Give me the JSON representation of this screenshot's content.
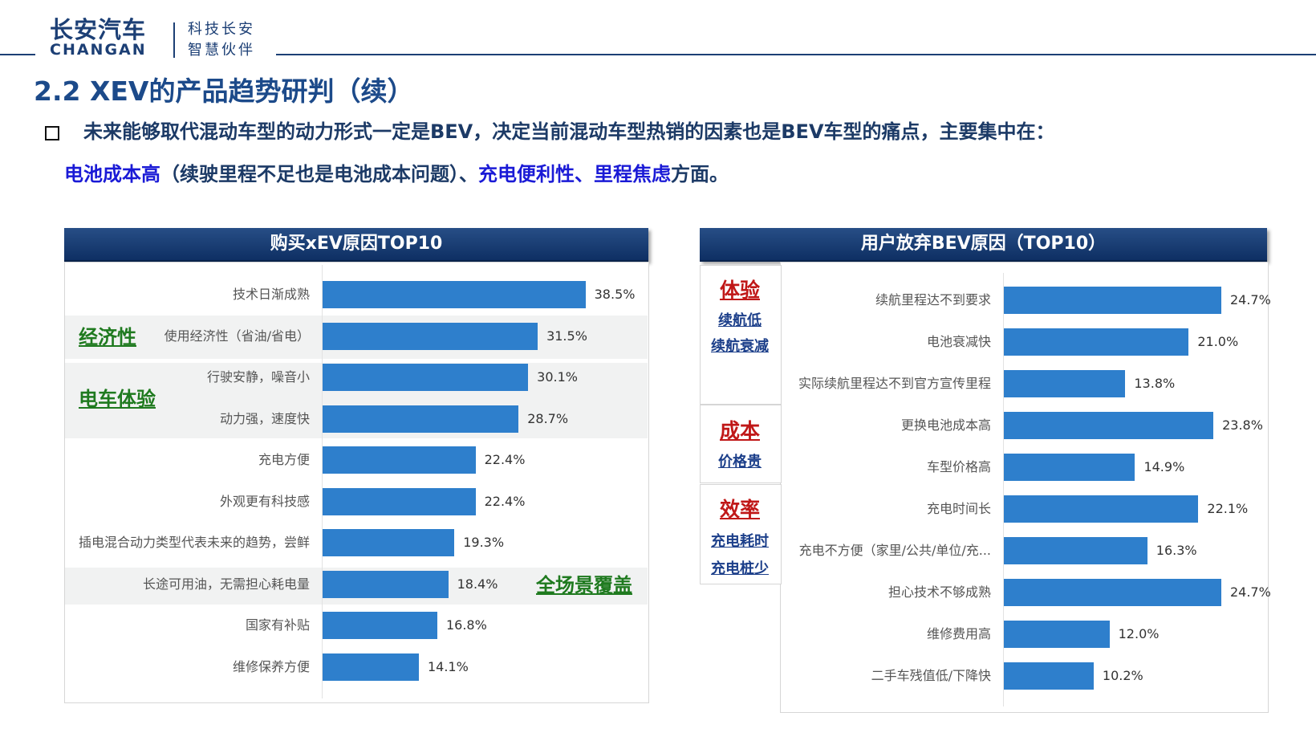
{
  "header": {
    "logo_cn": "长安汽车",
    "logo_en": "CHANGAN",
    "slogan_line1": "科技长安",
    "slogan_line2": "智慧伙伴"
  },
  "page_title": "2.2 XEV的产品趋势研判（续）",
  "intro": {
    "line1": "未来能够取代混动车型的动力形式一定是BEV，决定当前混动车型热销的因素也是BEV车型的痛点，主要集中在：",
    "line2_part1": "电池成本高",
    "line2_part2": "（续驶里程不足也是电池成本问题）、",
    "line2_part3": "充电便利性、里程焦虑",
    "line2_part4": "方面。"
  },
  "left_annotations": {
    "economy": "经济性",
    "ev_experience": "电车体验",
    "all_scenarios": "全场景覆盖"
  },
  "right_annotations": {
    "experience": "体验",
    "range_low": "续航低",
    "range_decay": "续航衰减",
    "cost": "成本",
    "price_high": "价格贵",
    "efficiency": "效率",
    "charge_time": "充电耗时",
    "few_piles": "充电桩少"
  },
  "chart_data": [
    {
      "type": "bar",
      "orientation": "horizontal",
      "title": "购买xEV原因TOP10",
      "categories": [
        "技术日渐成熟",
        "使用经济性（省油/省电）",
        "行驶安静，噪音小",
        "动力强，速度快",
        "充电方便",
        "外观更有科技感",
        "插电混合动力类型代表未来的趋势，尝鲜",
        "长途可用油，无需担心耗电量",
        "国家有补贴",
        "维修保养方便"
      ],
      "values": [
        38.5,
        31.5,
        30.1,
        28.7,
        22.4,
        22.4,
        19.3,
        18.4,
        16.8,
        14.1
      ],
      "labels": [
        "38.5%",
        "31.5%",
        "30.1%",
        "28.7%",
        "22.4%",
        "22.4%",
        "19.3%",
        "18.4%",
        "16.8%",
        "14.1%"
      ],
      "unit": "%",
      "color": "#2e7fcc"
    },
    {
      "type": "bar",
      "orientation": "horizontal",
      "title": "用户放弃BEV原因（TOP10）",
      "categories": [
        "续航里程达不到要求",
        "电池衰减快",
        "实际续航里程达不到官方宣传里程",
        "更换电池成本高",
        "车型价格高",
        "充电时间长",
        "充电不方便（家里/公共/单位/充...",
        "担心技术不够成熟",
        "维修费用高",
        "二手车残值低/下降快"
      ],
      "values": [
        24.7,
        21.0,
        13.8,
        23.8,
        14.9,
        22.1,
        16.3,
        24.7,
        12.0,
        10.2
      ],
      "labels": [
        "24.7%",
        "21.0%",
        "13.8%",
        "23.8%",
        "14.9%",
        "22.1%",
        "16.3%",
        "24.7%",
        "12.0%",
        "10.2%"
      ],
      "unit": "%",
      "color": "#2e7fcc"
    }
  ]
}
